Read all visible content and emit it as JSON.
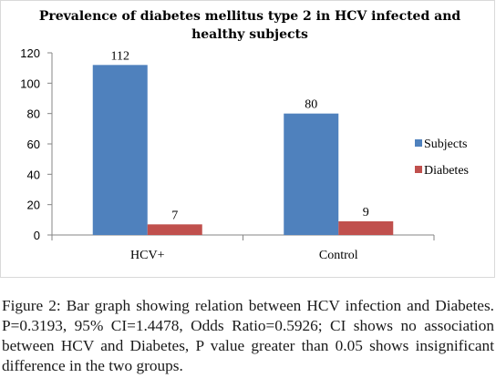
{
  "chart_data": {
    "type": "bar",
    "title_lines": [
      "Prevalence of diabetes mellitus type 2 in  HCV infected and",
      "healthy subjects"
    ],
    "categories": [
      "HCV+",
      "Control"
    ],
    "series": [
      {
        "name": "Subjects",
        "values": [
          112,
          80
        ],
        "color": "#4f81bd"
      },
      {
        "name": "Diabetes",
        "values": [
          7,
          9
        ],
        "color": "#c0504d"
      }
    ],
    "data_labels": [
      [
        "112",
        "80"
      ],
      [
        "7",
        "9"
      ]
    ],
    "ylim": [
      0,
      120
    ],
    "yticks": [
      0,
      20,
      40,
      60,
      80,
      100,
      120
    ],
    "legend": "right",
    "grid": false
  },
  "caption": {
    "label": "Figure 2:",
    "text": " Bar graph showing relation between HCV infection and Diabetes. P=0.3193, 95% CI=1.4478, Odds Ratio=0.5926; CI shows no association between HCV and Diabetes, P value greater than 0.05 shows insignificant difference in the two groups."
  }
}
